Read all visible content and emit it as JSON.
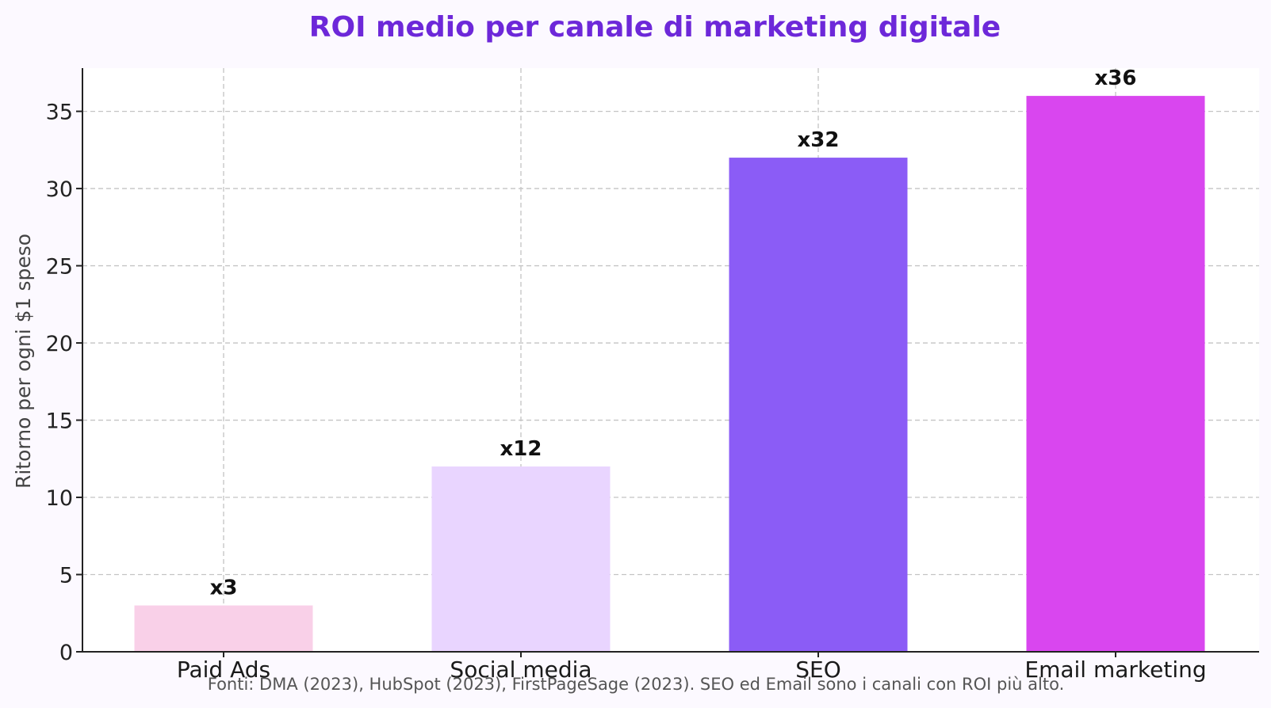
{
  "chart_data": {
    "type": "bar",
    "title": "ROI medio per canale di marketing digitale",
    "xlabel": "",
    "ylabel": "Ritorno per ogni $1 speso",
    "categories": [
      "Paid Ads",
      "Social media",
      "SEO",
      "Email marketing"
    ],
    "values": [
      3,
      12,
      32,
      36
    ],
    "data_labels": [
      "x3",
      "x12",
      "x32",
      "x36"
    ],
    "bar_colors": [
      "#f9d0e8",
      "#e9d5ff",
      "#8b5cf6",
      "#d946ef"
    ],
    "ylim": [
      0,
      37.8
    ],
    "yticks": [
      0,
      5,
      10,
      15,
      20,
      25,
      30,
      35
    ],
    "grid": true,
    "legend": "none"
  },
  "footnote": "Fonti: DMA (2023), HubSpot (2023), FirstPageSage (2023). SEO ed Email sono i canali con ROI più alto.",
  "colors": {
    "title": "#6d28d9",
    "background": "#fcf9ff",
    "plot_background": "#ffffff"
  }
}
